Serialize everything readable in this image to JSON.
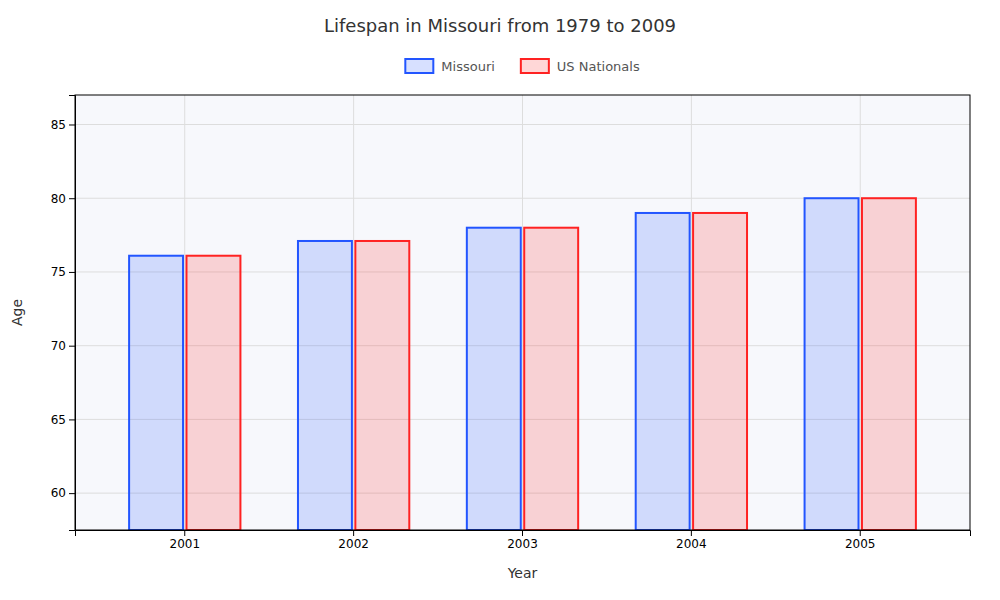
{
  "chart_data": {
    "type": "bar",
    "title": "Lifespan in Missouri from 1979 to 2009",
    "xlabel": "Year",
    "ylabel": "Age",
    "categories": [
      "2001",
      "2002",
      "2003",
      "2004",
      "2005"
    ],
    "series": [
      {
        "name": "Missouri",
        "color": "#2255ff",
        "values": [
          76.1,
          77.1,
          78.0,
          79.0,
          80.0
        ]
      },
      {
        "name": "US Nationals",
        "color": "#ff2222",
        "values": [
          76.1,
          77.1,
          78.0,
          79.0,
          80.0
        ]
      }
    ],
    "ylim": [
      57.5,
      87
    ],
    "yticks": [
      60,
      65,
      70,
      75,
      80,
      85
    ],
    "grid": true,
    "legend": "top"
  }
}
